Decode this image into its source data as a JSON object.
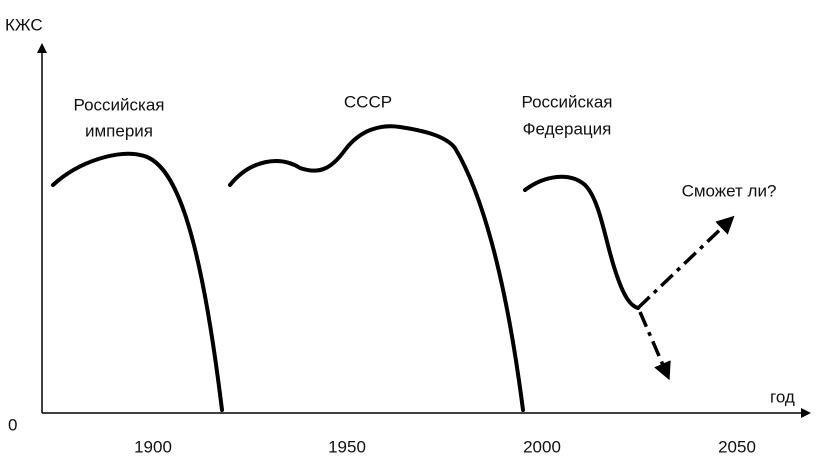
{
  "axes": {
    "y_label": "КЖС",
    "x_label": "год",
    "origin": "0",
    "x_ticks": [
      "1900",
      "1950",
      "2000",
      "2050"
    ]
  },
  "labels": {
    "empire": [
      "Российская",
      "империя"
    ],
    "ussr": "СССР",
    "federation": [
      "Российская",
      "Федерация"
    ],
    "question": "Сможет ли?"
  }
}
